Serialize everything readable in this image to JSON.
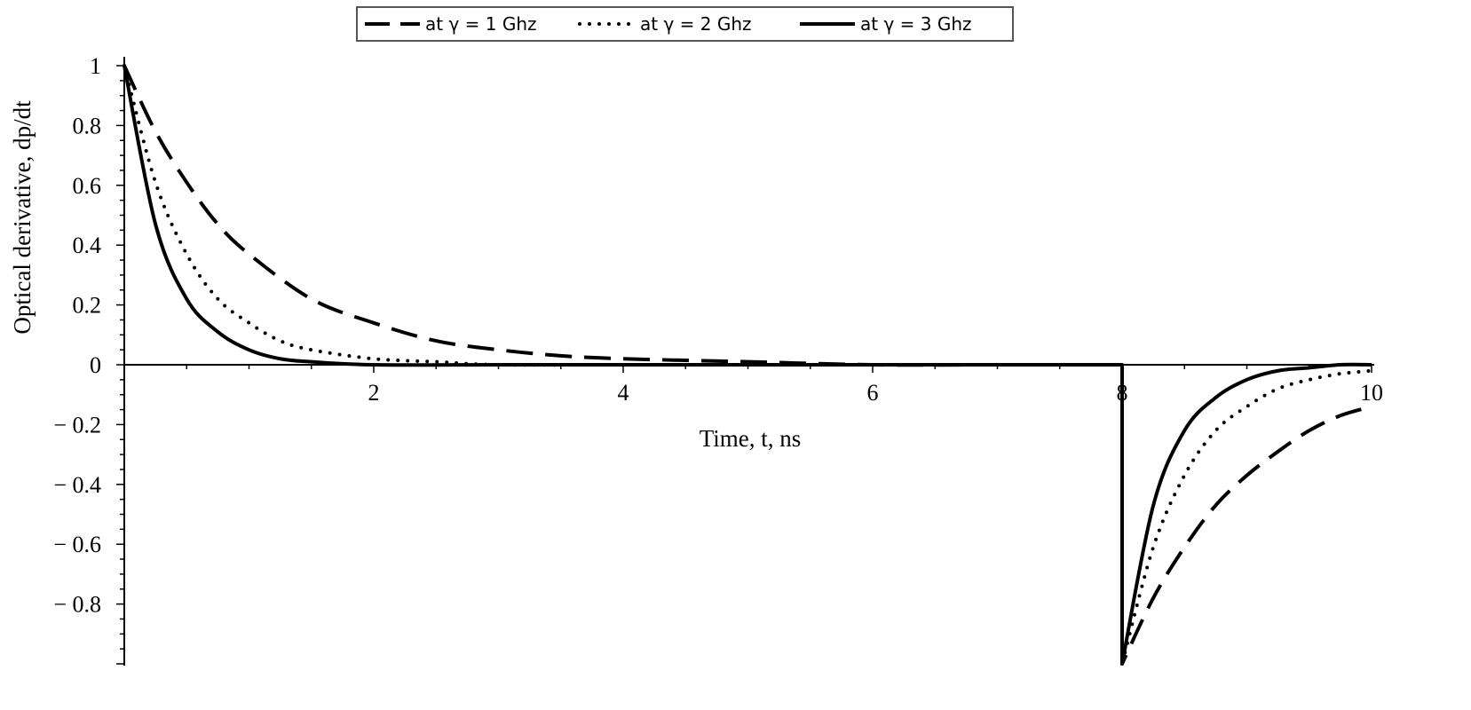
{
  "chart_data": {
    "type": "line",
    "xlabel": "Time, t, ns",
    "ylabel": "Optical derivative, dp/dt",
    "xlim": [
      0,
      10
    ],
    "ylim": [
      -1,
      1
    ],
    "x_ticks": [
      2,
      4,
      6,
      8,
      10
    ],
    "x_tick_labels": [
      "2",
      "4",
      "6",
      "8",
      "10"
    ],
    "y_ticks": [
      1,
      0.8,
      0.6,
      0.4,
      0.2,
      0,
      -0.2,
      -0.4,
      -0.6,
      -0.8
    ],
    "y_tick_labels": [
      "1",
      "0.8",
      "0.6",
      "0.4",
      "0.2",
      "0",
      "-0.2",
      "-0.4",
      "-0.6",
      "-0.8"
    ],
    "grid": false,
    "legend_position": "top-center",
    "series": [
      {
        "name": "at γ = 1 Ghz",
        "style": "dashed",
        "color": "#000000",
        "x": [
          0,
          0.25,
          0.5,
          0.75,
          1,
          1.5,
          2,
          2.5,
          3,
          3.5,
          4,
          5,
          6,
          7,
          8,
          8,
          8.25,
          8.5,
          8.75,
          9,
          9.25,
          9.5,
          9.75,
          10
        ],
        "y": [
          1,
          0.78,
          0.61,
          0.47,
          0.37,
          0.22,
          0.14,
          0.08,
          0.05,
          0.03,
          0.02,
          0.01,
          0,
          0,
          0,
          -1,
          -0.78,
          -0.61,
          -0.47,
          -0.37,
          -0.29,
          -0.22,
          -0.17,
          -0.14
        ]
      },
      {
        "name": "at γ = 2 Ghz",
        "style": "dotted",
        "color": "#000000",
        "x": [
          0,
          0.25,
          0.5,
          0.75,
          1,
          1.25,
          1.5,
          2,
          2.5,
          3,
          4,
          6,
          8,
          8,
          8.25,
          8.5,
          8.75,
          9,
          9.25,
          9.5,
          9.75,
          10
        ],
        "y": [
          1,
          0.61,
          0.37,
          0.22,
          0.14,
          0.08,
          0.05,
          0.02,
          0.01,
          0,
          0,
          0,
          0,
          -1,
          -0.61,
          -0.37,
          -0.22,
          -0.14,
          -0.08,
          -0.05,
          -0.03,
          -0.02
        ]
      },
      {
        "name": "at γ = 3 Ghz",
        "style": "solid",
        "color": "#000000",
        "x": [
          0,
          0.25,
          0.5,
          0.75,
          1,
          1.25,
          1.5,
          2,
          3,
          4,
          6,
          8,
          8,
          8.25,
          8.5,
          8.75,
          9,
          9.25,
          9.5,
          9.75,
          10
        ],
        "y": [
          1,
          0.47,
          0.22,
          0.11,
          0.05,
          0.02,
          0.01,
          0,
          0,
          0,
          0,
          0,
          -1,
          -0.47,
          -0.22,
          -0.11,
          -0.05,
          -0.02,
          -0.01,
          0,
          0
        ]
      }
    ]
  }
}
